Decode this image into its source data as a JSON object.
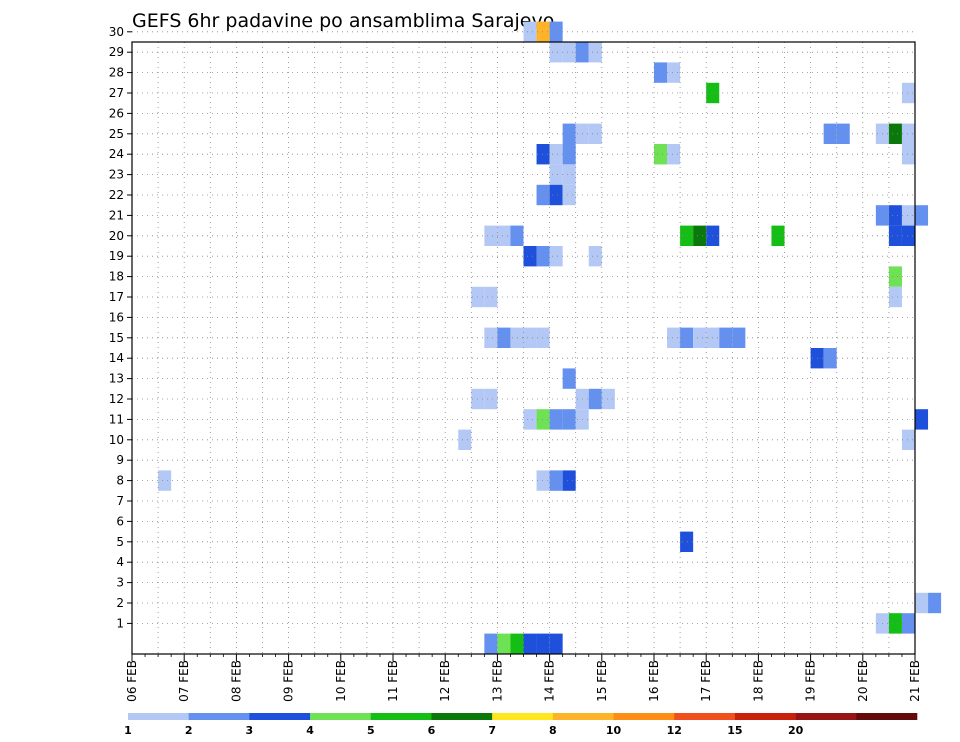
{
  "chart_data": {
    "type": "heatmap",
    "title": "GEFS 6hr padavine po ansamblima Sarajevo",
    "xlabel": "",
    "ylabel": "",
    "x_ticks": [
      "06 FEB",
      "07 FEB",
      "08 FEB",
      "09 FEB",
      "10 FEB",
      "11 FEB",
      "12 FEB",
      "13 FEB",
      "14 FEB",
      "15 FEB",
      "16 FEB",
      "17 FEB",
      "18 FEB",
      "19 FEB",
      "20 FEB",
      "21 FEB"
    ],
    "y_ticks": [
      "1",
      "2",
      "3",
      "4",
      "5",
      "6",
      "7",
      "8",
      "9",
      "10",
      "11",
      "12",
      "13",
      "14",
      "15",
      "16",
      "17",
      "18",
      "19",
      "20",
      "21",
      "22",
      "23",
      "24",
      "25",
      "26",
      "27",
      "28",
      "29",
      "30"
    ],
    "y_range": [
      0,
      30
    ],
    "grid": true,
    "colorbar": {
      "colors": [
        "#b4c8f5",
        "#6491f0",
        "#1e50dc",
        "#6ee155",
        "#14be14",
        "#0a780a",
        "#ffe61e",
        "#ffb428",
        "#ff8c14",
        "#f0501e",
        "#c8230a",
        "#961414",
        "#640a0a"
      ],
      "labels": [
        "1",
        "2",
        "3",
        "4",
        "5",
        "6",
        "7",
        "8",
        "10",
        "12",
        "15",
        "20"
      ]
    },
    "cells": [
      {
        "member": 30,
        "step": 30,
        "cat": 0
      },
      {
        "member": 30,
        "step": 31,
        "cat": 7
      },
      {
        "member": 30,
        "step": 32,
        "cat": 1
      },
      {
        "member": 29,
        "step": 32,
        "cat": 0
      },
      {
        "member": 29,
        "step": 33,
        "cat": 0
      },
      {
        "member": 29,
        "step": 34,
        "cat": 1
      },
      {
        "member": 29,
        "step": 35,
        "cat": 0
      },
      {
        "member": 28,
        "step": 40,
        "cat": 1
      },
      {
        "member": 28,
        "step": 41,
        "cat": 0
      },
      {
        "member": 27,
        "step": 44,
        "cat": 4
      },
      {
        "member": 27,
        "step": 59,
        "cat": 0
      },
      {
        "member": 25,
        "step": 33,
        "cat": 1
      },
      {
        "member": 25,
        "step": 34,
        "cat": 0
      },
      {
        "member": 25,
        "step": 35,
        "cat": 0
      },
      {
        "member": 25,
        "step": 53,
        "cat": 1
      },
      {
        "member": 25,
        "step": 54,
        "cat": 1
      },
      {
        "member": 25,
        "step": 57,
        "cat": 0
      },
      {
        "member": 25,
        "step": 58,
        "cat": 5
      },
      {
        "member": 25,
        "step": 59,
        "cat": 0
      },
      {
        "member": 24,
        "step": 31,
        "cat": 2
      },
      {
        "member": 24,
        "step": 32,
        "cat": 0
      },
      {
        "member": 24,
        "step": 33,
        "cat": 1
      },
      {
        "member": 24,
        "step": 40,
        "cat": 3
      },
      {
        "member": 24,
        "step": 41,
        "cat": 0
      },
      {
        "member": 24,
        "step": 59,
        "cat": 0
      },
      {
        "member": 23,
        "step": 32,
        "cat": 0
      },
      {
        "member": 23,
        "step": 33,
        "cat": 0
      },
      {
        "member": 22,
        "step": 31,
        "cat": 1
      },
      {
        "member": 22,
        "step": 32,
        "cat": 2
      },
      {
        "member": 22,
        "step": 33,
        "cat": 0
      },
      {
        "member": 21,
        "step": 57,
        "cat": 1
      },
      {
        "member": 21,
        "step": 58,
        "cat": 2
      },
      {
        "member": 21,
        "step": 59,
        "cat": 0
      },
      {
        "member": 21,
        "step": 60,
        "cat": 1
      },
      {
        "member": 20,
        "step": 27,
        "cat": 0
      },
      {
        "member": 20,
        "step": 28,
        "cat": 0
      },
      {
        "member": 20,
        "step": 29,
        "cat": 1
      },
      {
        "member": 20,
        "step": 42,
        "cat": 4
      },
      {
        "member": 20,
        "step": 43,
        "cat": 5
      },
      {
        "member": 20,
        "step": 44,
        "cat": 2
      },
      {
        "member": 20,
        "step": 49,
        "cat": 4
      },
      {
        "member": 20,
        "step": 58,
        "cat": 2
      },
      {
        "member": 20,
        "step": 59,
        "cat": 2
      },
      {
        "member": 19,
        "step": 30,
        "cat": 2
      },
      {
        "member": 19,
        "step": 31,
        "cat": 1
      },
      {
        "member": 19,
        "step": 32,
        "cat": 0
      },
      {
        "member": 19,
        "step": 35,
        "cat": 0
      },
      {
        "member": 18,
        "step": 58,
        "cat": 3
      },
      {
        "member": 17,
        "step": 26,
        "cat": 0
      },
      {
        "member": 17,
        "step": 27,
        "cat": 0
      },
      {
        "member": 17,
        "step": 58,
        "cat": 0
      },
      {
        "member": 15,
        "step": 27,
        "cat": 0
      },
      {
        "member": 15,
        "step": 28,
        "cat": 1
      },
      {
        "member": 15,
        "step": 29,
        "cat": 0
      },
      {
        "member": 15,
        "step": 30,
        "cat": 0
      },
      {
        "member": 15,
        "step": 31,
        "cat": 0
      },
      {
        "member": 15,
        "step": 41,
        "cat": 0
      },
      {
        "member": 15,
        "step": 42,
        "cat": 1
      },
      {
        "member": 15,
        "step": 43,
        "cat": 0
      },
      {
        "member": 15,
        "step": 44,
        "cat": 0
      },
      {
        "member": 15,
        "step": 45,
        "cat": 1
      },
      {
        "member": 15,
        "step": 46,
        "cat": 1
      },
      {
        "member": 14,
        "step": 52,
        "cat": 2
      },
      {
        "member": 14,
        "step": 53,
        "cat": 1
      },
      {
        "member": 13,
        "step": 33,
        "cat": 1
      },
      {
        "member": 12,
        "step": 26,
        "cat": 0
      },
      {
        "member": 12,
        "step": 27,
        "cat": 0
      },
      {
        "member": 12,
        "step": 34,
        "cat": 0
      },
      {
        "member": 12,
        "step": 35,
        "cat": 1
      },
      {
        "member": 12,
        "step": 36,
        "cat": 0
      },
      {
        "member": 11,
        "step": 30,
        "cat": 0
      },
      {
        "member": 11,
        "step": 31,
        "cat": 3
      },
      {
        "member": 11,
        "step": 32,
        "cat": 1
      },
      {
        "member": 11,
        "step": 33,
        "cat": 1
      },
      {
        "member": 11,
        "step": 34,
        "cat": 0
      },
      {
        "member": 11,
        "step": 60,
        "cat": 2
      },
      {
        "member": 10,
        "step": 25,
        "cat": 0
      },
      {
        "member": 10,
        "step": 59,
        "cat": 0
      },
      {
        "member": 8,
        "step": 2,
        "cat": 0
      },
      {
        "member": 8,
        "step": 31,
        "cat": 0
      },
      {
        "member": 8,
        "step": 32,
        "cat": 1
      },
      {
        "member": 8,
        "step": 33,
        "cat": 2
      },
      {
        "member": 5,
        "step": 42,
        "cat": 2
      },
      {
        "member": 2,
        "step": 60,
        "cat": 0
      },
      {
        "member": 2,
        "step": 61,
        "cat": 1
      },
      {
        "member": 1,
        "step": 57,
        "cat": 0
      },
      {
        "member": 1,
        "step": 58,
        "cat": 4
      },
      {
        "member": 1,
        "step": 59,
        "cat": 1
      },
      {
        "member": 0,
        "step": 27,
        "cat": 1
      },
      {
        "member": 0,
        "step": 28,
        "cat": 3
      },
      {
        "member": 0,
        "step": 29,
        "cat": 4
      },
      {
        "member": 0,
        "step": 30,
        "cat": 2
      },
      {
        "member": 0,
        "step": 31,
        "cat": 2
      },
      {
        "member": 0,
        "step": 32,
        "cat": 2
      }
    ]
  }
}
